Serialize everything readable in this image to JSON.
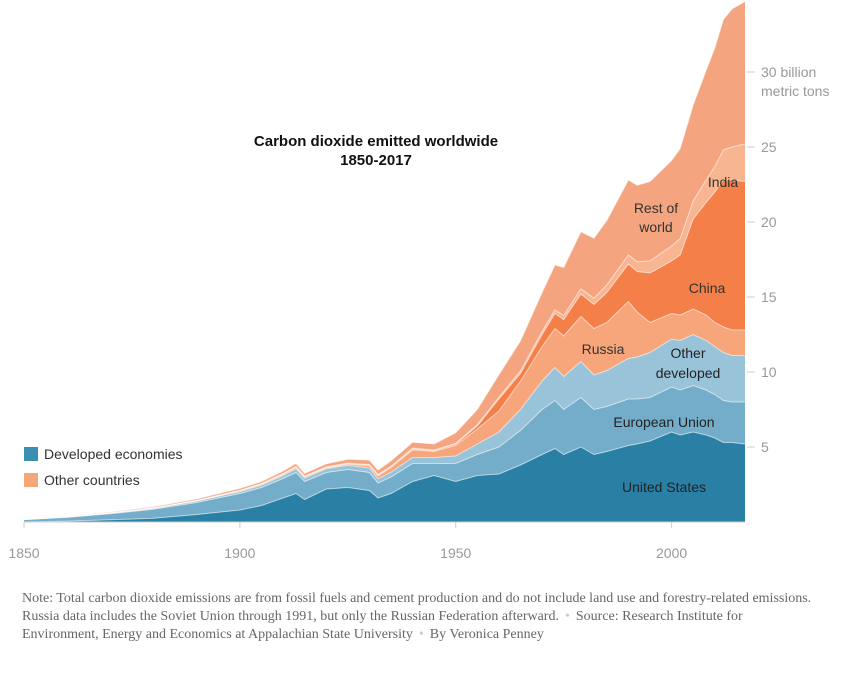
{
  "chart_data": {
    "type": "area",
    "title_lines": [
      "Carbon dioxide emitted worldwide",
      "1850-2017"
    ],
    "x": [
      1850,
      1860,
      1870,
      1880,
      1890,
      1900,
      1905,
      1910,
      1913,
      1915,
      1920,
      1925,
      1930,
      1932,
      1935,
      1940,
      1945,
      1950,
      1955,
      1960,
      1965,
      1970,
      1973,
      1975,
      1979,
      1982,
      1985,
      1990,
      1992,
      1995,
      2000,
      2002,
      2005,
      2008,
      2010,
      2012,
      2014,
      2017
    ],
    "xticks": [
      1850,
      1900,
      1950,
      2000
    ],
    "ylim": [
      0,
      34
    ],
    "yticks": [
      5,
      10,
      15,
      20,
      25,
      30
    ],
    "ytick_top_lines": [
      "30 billion",
      "metric tons"
    ],
    "series": [
      {
        "name": "United States",
        "group": "developed",
        "values": [
          0.01,
          0.06,
          0.15,
          0.25,
          0.5,
          0.8,
          1.1,
          1.6,
          1.9,
          1.5,
          2.2,
          2.3,
          2.1,
          1.6,
          1.9,
          2.7,
          3.1,
          2.7,
          3.1,
          3.2,
          3.8,
          4.5,
          4.9,
          4.5,
          5.0,
          4.5,
          4.7,
          5.1,
          5.2,
          5.4,
          6.0,
          5.8,
          6.0,
          5.8,
          5.6,
          5.3,
          5.3,
          5.2
        ]
      },
      {
        "name": "European Union",
        "group": "developed",
        "values": [
          0.15,
          0.25,
          0.4,
          0.6,
          0.8,
          1.1,
          1.2,
          1.3,
          1.4,
          1.2,
          1.1,
          1.2,
          1.2,
          1.0,
          1.1,
          1.2,
          0.8,
          1.2,
          1.4,
          1.8,
          2.3,
          3.0,
          3.2,
          3.0,
          3.3,
          3.0,
          3.0,
          3.1,
          3.0,
          2.9,
          3.0,
          3.0,
          3.1,
          3.0,
          2.9,
          2.8,
          2.7,
          2.8
        ]
      },
      {
        "name": "Other developed",
        "group": "developed",
        "values": [
          0.01,
          0.02,
          0.04,
          0.06,
          0.1,
          0.13,
          0.16,
          0.2,
          0.25,
          0.22,
          0.25,
          0.28,
          0.3,
          0.28,
          0.32,
          0.4,
          0.4,
          0.5,
          0.7,
          1.0,
          1.4,
          1.9,
          2.2,
          2.2,
          2.4,
          2.3,
          2.4,
          2.7,
          2.8,
          3.0,
          3.2,
          3.3,
          3.4,
          3.3,
          3.2,
          3.2,
          3.1,
          3.1
        ]
      },
      {
        "name": "Russia",
        "group": "other",
        "values": [
          0.0,
          0.01,
          0.01,
          0.02,
          0.03,
          0.05,
          0.07,
          0.08,
          0.1,
          0.09,
          0.05,
          0.08,
          0.15,
          0.2,
          0.3,
          0.5,
          0.4,
          0.7,
          1.0,
          1.4,
          1.9,
          2.3,
          2.6,
          2.7,
          3.0,
          3.1,
          3.2,
          3.8,
          3.0,
          2.0,
          1.7,
          1.7,
          1.7,
          1.7,
          1.6,
          1.7,
          1.7,
          1.7
        ]
      },
      {
        "name": "China",
        "group": "other",
        "values": [
          0.0,
          0.0,
          0.0,
          0.0,
          0.0,
          0.01,
          0.01,
          0.02,
          0.02,
          0.02,
          0.03,
          0.03,
          0.04,
          0.04,
          0.05,
          0.06,
          0.04,
          0.08,
          0.2,
          0.8,
          0.5,
          0.8,
          1.0,
          1.1,
          1.5,
          1.6,
          2.0,
          2.5,
          2.7,
          3.3,
          3.5,
          4.0,
          6.0,
          7.5,
          8.7,
          9.8,
          10.0,
          9.9
        ]
      },
      {
        "name": "India",
        "group": "other",
        "values": [
          0.0,
          0.0,
          0.0,
          0.01,
          0.01,
          0.02,
          0.02,
          0.03,
          0.03,
          0.03,
          0.04,
          0.04,
          0.04,
          0.04,
          0.05,
          0.06,
          0.06,
          0.07,
          0.1,
          0.12,
          0.18,
          0.2,
          0.24,
          0.27,
          0.35,
          0.42,
          0.5,
          0.6,
          0.65,
          0.8,
          1.0,
          1.1,
          1.2,
          1.5,
          1.7,
          2.0,
          2.2,
          2.5
        ]
      },
      {
        "name": "Rest of world",
        "group": "other",
        "values": [
          0.02,
          0.04,
          0.06,
          0.08,
          0.1,
          0.13,
          0.14,
          0.17,
          0.2,
          0.18,
          0.2,
          0.25,
          0.3,
          0.3,
          0.35,
          0.4,
          0.4,
          0.7,
          1.0,
          1.5,
          2.0,
          2.6,
          3.0,
          3.2,
          3.8,
          4.0,
          4.3,
          5.0,
          5.1,
          5.3,
          5.7,
          6.0,
          6.4,
          7.3,
          7.9,
          8.7,
          9.2,
          9.5
        ]
      }
    ],
    "legend": [
      {
        "label": "Developed economies",
        "color": "#3a8fb3"
      },
      {
        "label": "Other countries",
        "color": "#f5a77a"
      }
    ],
    "colors": {
      "United States": "#2a7fa5",
      "European Union": "#74adc9",
      "Other developed": "#99c3d9",
      "Russia": "#f7a57a",
      "China": "#f47f49",
      "India": "#f8b592",
      "Rest of world": "#f4a47f"
    }
  },
  "note": {
    "text": "Note: Total carbon dioxide emissions are from fossil fuels and cement production and do not include land use and forestry-related emissions. Russia data includes the Soviet Union through 1991, but only the Russian Federation afterward.",
    "source": "Source: Research Institute for Environment, Energy and Economics at Appalachian State University",
    "byline": "By Veronica Penney"
  }
}
